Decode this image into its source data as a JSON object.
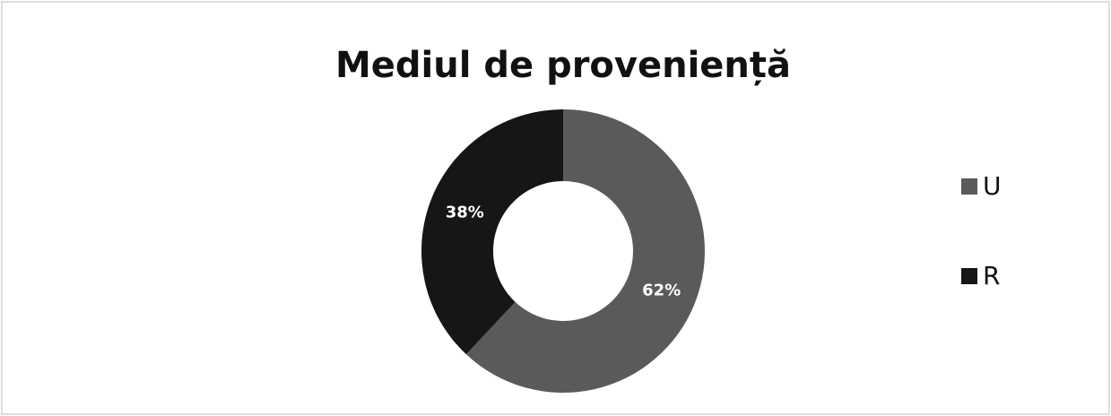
{
  "chart_data": {
    "type": "donut",
    "title": "Mediul de proveniență",
    "categories": [
      "U",
      "R"
    ],
    "values": [
      62,
      38
    ],
    "value_labels": [
      "62%",
      "38%"
    ],
    "colors": [
      "#5a5a5a",
      "#161616"
    ],
    "legend": "right"
  }
}
